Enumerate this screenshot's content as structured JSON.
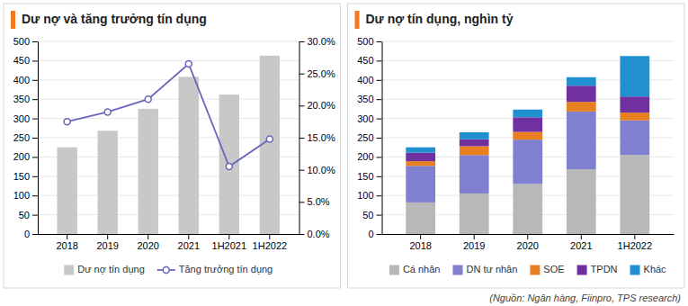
{
  "chart_data": [
    {
      "type": "bar",
      "title": "Dư nợ và tăng trưởng tín dụng",
      "categories": [
        "2018",
        "2019",
        "2020",
        "2021",
        "1H2021",
        "1H2022"
      ],
      "series": [
        {
          "name": "Dư nợ tín dụng",
          "type": "bar",
          "color": "#c8c8c8",
          "values": [
            225,
            268,
            325,
            408,
            362,
            463
          ]
        },
        {
          "name": "Tăng trưởng tín dụng",
          "type": "line",
          "axis": "y2",
          "marker": "circle",
          "color": "#6666bb",
          "values": [
            0.175,
            0.19,
            0.21,
            0.265,
            0.105,
            0.148
          ]
        }
      ],
      "ylim": [
        0,
        500
      ],
      "yticks": [
        0,
        50,
        100,
        150,
        200,
        250,
        300,
        350,
        400,
        450,
        500
      ],
      "y2lim": [
        0.0,
        0.3
      ],
      "y2ticks": [
        {
          "value": 0.0,
          "label": "0.0%"
        },
        {
          "value": 0.05,
          "label": "5.0%"
        },
        {
          "value": 0.1,
          "label": "10.0%"
        },
        {
          "value": 0.15,
          "label": "15.0%"
        },
        {
          "value": 0.2,
          "label": "20.0%"
        },
        {
          "value": 0.25,
          "label": "25.0%"
        },
        {
          "value": 0.3,
          "label": "30.0%"
        }
      ],
      "grid": true,
      "legend": "bottom"
    },
    {
      "type": "bar",
      "title": "Dư nợ tín dụng, nghìn tỷ",
      "categories": [
        "2018",
        "2019",
        "2020",
        "2021",
        "1H2022"
      ],
      "stacked": true,
      "series": [
        {
          "name": "Cá nhân",
          "color": "#b8b8b8",
          "values": [
            82,
            105,
            130,
            168,
            205
          ]
        },
        {
          "name": "DN tư nhân",
          "color": "#8080d0",
          "values": [
            95,
            100,
            115,
            150,
            90
          ]
        },
        {
          "name": "SOE",
          "color": "#e88020",
          "values": [
            12,
            23,
            20,
            25,
            20
          ]
        },
        {
          "name": "TPDN",
          "color": "#7030a0",
          "values": [
            22,
            18,
            38,
            42,
            42
          ]
        },
        {
          "name": "Khác",
          "color": "#2090d0",
          "values": [
            14,
            18,
            20,
            22,
            105
          ]
        }
      ],
      "ylim": [
        0,
        500
      ],
      "yticks": [
        0,
        50,
        100,
        150,
        200,
        250,
        300,
        350,
        400,
        450,
        500
      ],
      "grid": true,
      "legend": "bottom",
      "annotations": [
        "(Nguồn: Ngân hàng, Fiinpro, TPS research)"
      ]
    }
  ]
}
